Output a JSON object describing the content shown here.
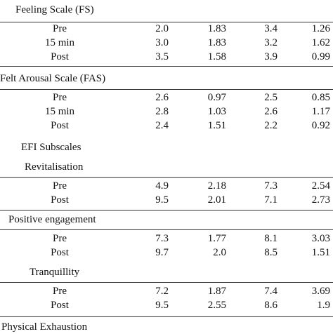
{
  "sections": [
    {
      "title": "Feeling Scale (FS)",
      "rows": [
        {
          "label": "Pre",
          "values": [
            "2.0",
            "1.83",
            "3.4",
            "1.26"
          ]
        },
        {
          "label": "15 min",
          "values": [
            "3.0",
            "1.83",
            "3.2",
            "1.62"
          ]
        },
        {
          "label": "Post",
          "values": [
            "3.5",
            "1.58",
            "3.9",
            "0.99"
          ]
        }
      ]
    },
    {
      "title": "Felt Arousal Scale (FAS)",
      "rows": [
        {
          "label": "Pre",
          "values": [
            "2.6",
            "0.97",
            "2.5",
            "0.85"
          ]
        },
        {
          "label": "15 min",
          "values": [
            "2.8",
            "1.03",
            "2.6",
            "1.17"
          ]
        },
        {
          "label": "Post",
          "values": [
            "2.4",
            "1.51",
            "2.2",
            "0.92"
          ]
        }
      ]
    },
    {
      "title": "EFI Subscales",
      "rows": []
    },
    {
      "title": "Revitalisation",
      "rows": [
        {
          "label": "Pre",
          "values": [
            "4.9",
            "2.18",
            "7.3",
            "2.54"
          ]
        },
        {
          "label": "Post",
          "values": [
            "9.5",
            "2.01",
            "7.1",
            "2.73"
          ]
        }
      ]
    },
    {
      "title": "Positive engagement",
      "rows": [
        {
          "label": "Pre",
          "values": [
            "7.3",
            "1.77",
            "8.1",
            "3.03"
          ]
        },
        {
          "label": "Post",
          "values": [
            "9.7",
            "2.0",
            "8.5",
            "1.51"
          ]
        }
      ]
    },
    {
      "title": "Tranquillity",
      "rows": [
        {
          "label": "Pre",
          "values": [
            "7.2",
            "1.87",
            "7.4",
            "3.69"
          ]
        },
        {
          "label": "Post",
          "values": [
            "9.5",
            "2.55",
            "8.6",
            "1.9"
          ]
        }
      ]
    },
    {
      "title": "Physical Exhaustion",
      "rows": []
    }
  ]
}
